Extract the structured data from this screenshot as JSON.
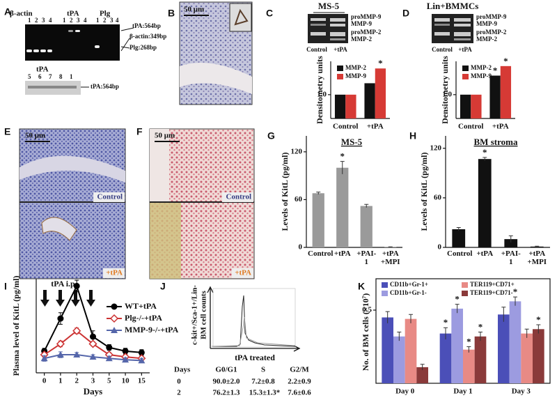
{
  "panel_labels": [
    "A",
    "B",
    "C",
    "D",
    "E",
    "F",
    "G",
    "H",
    "I",
    "J",
    "K"
  ],
  "panel_a": {
    "headers": [
      "β-actin",
      "tPA",
      "Plg"
    ],
    "lanes": [
      "1",
      "2",
      "3",
      "4"
    ],
    "band_labels": [
      "tPA:564bp",
      "β-actin:349bp",
      "Plg:268bp"
    ],
    "lower_header": "tPA",
    "lower_lanes": [
      "5",
      "6",
      "7",
      "8",
      "1"
    ],
    "lower_band_label": "tPA:564bp"
  },
  "panel_b": {
    "scale": "50 μm"
  },
  "panel_c": {
    "title": "MS-5",
    "gel_labels": [
      "proMMP-9",
      "MMP-9",
      "proMMP-2",
      "MMP-2"
    ],
    "gel_lanes": [
      "Control",
      "+tPA"
    ]
  },
  "panel_d": {
    "title": "Lin+BMMCs",
    "gel_labels": [
      "proMMP-9",
      "MMP-9",
      "proMMP-2",
      "MMP-2"
    ],
    "gel_lanes": [
      "Control",
      "+tPA"
    ]
  },
  "panel_e": {
    "scale": "50 μm",
    "labels": [
      "Control",
      "+tPA"
    ]
  },
  "panel_f": {
    "scale": "50 μm",
    "labels": [
      "Control",
      "+tPA"
    ]
  },
  "panel_i": {
    "annotation": "tPA i.p."
  },
  "panel_j": {
    "y_label": [
      "c-kit+/Sca-1+/Lin-",
      "BM cell counts"
    ],
    "x_label": "tPA treated",
    "table": {
      "header": [
        "Days",
        "G0/G1",
        "S",
        "G2/M"
      ],
      "rows": [
        [
          "0",
          "90.0±2.0",
          "7.2±0.8",
          "2.2±0.9"
        ],
        [
          "2",
          "76.2±1.3",
          "15.3±1.3*",
          "7.6±0.6"
        ]
      ]
    }
  },
  "chart_data": [
    {
      "type": "bar",
      "y_label": "Densitometry units",
      "categories": [
        "Control",
        "+tPA"
      ],
      "series": [
        {
          "name": "MMP-2",
          "color": "#111111",
          "values": [
            1.0,
            1.24
          ]
        },
        {
          "name": "MMP-9",
          "color": "#d63a35",
          "values": [
            1.0,
            1.55
          ],
          "significance": [
            null,
            "*"
          ]
        }
      ],
      "ylim": [
        0.5,
        1.7
      ],
      "yticks": [
        {
          "value": 1,
          "label": "1.0"
        }
      ]
    },
    {
      "type": "bar",
      "y_label": "Densitometry units",
      "categories": [
        "Control",
        "+tPA"
      ],
      "series": [
        {
          "name": "MMP-2",
          "color": "#111111",
          "values": [
            1.0,
            1.4
          ],
          "significance": [
            null,
            "*"
          ]
        },
        {
          "name": "MMP-9",
          "color": "#d63a35",
          "values": [
            1.0,
            1.6
          ],
          "significance": [
            null,
            "*"
          ]
        }
      ],
      "ylim": [
        0.5,
        1.7
      ],
      "yticks": [
        {
          "value": 1,
          "label": "1.0"
        }
      ]
    },
    {
      "type": "bar",
      "title": "MS-5",
      "y_label": "Levels of KitL (pg/ml)",
      "categories": [
        "Control",
        "+tPA",
        "+PAI-1",
        "+tPA +MPI"
      ],
      "series": [
        {
          "color": "#9a9a9a",
          "values": [
            68,
            100,
            52,
            0.5
          ],
          "errors": [
            1.5,
            8,
            2,
            0.3
          ],
          "significance": [
            null,
            "*",
            null,
            null
          ]
        }
      ],
      "ylim": [
        0,
        140
      ],
      "yticks": [
        0,
        60,
        120
      ]
    },
    {
      "type": "bar",
      "title": "BM stroma",
      "y_label": "Levels of KitL (pg/ml)",
      "categories": [
        "Control",
        "+tPA",
        "+PAI-1",
        "+tPA +MPI"
      ],
      "series": [
        {
          "color": "#111111",
          "values": [
            22,
            107,
            10,
            1
          ],
          "errors": [
            2,
            2,
            4,
            0.5
          ],
          "significance": [
            null,
            "*",
            null,
            null
          ]
        }
      ],
      "ylim": [
        0,
        135
      ],
      "yticks": [
        0,
        60,
        120
      ]
    },
    {
      "type": "line",
      "x_label": "Days",
      "y_label": "Plasma level of KitL (pg/ml)",
      "categories": [
        "0",
        "1",
        "2",
        "3",
        "5",
        "10",
        "15"
      ],
      "series": [
        {
          "name": "WT+tPA",
          "color": "#000000",
          "marker": "circle",
          "values": [
            30,
            75,
            120,
            50,
            35,
            30,
            28
          ],
          "errors": [
            4,
            8,
            8,
            8,
            4,
            4,
            4
          ]
        },
        {
          "name": "Plg-/-+tPA",
          "color": "#cc3333",
          "marker": "open-diamond",
          "values": [
            25,
            40,
            58,
            40,
            25,
            22,
            20
          ],
          "errors": [
            3,
            4,
            4,
            3,
            3,
            3,
            3
          ]
        },
        {
          "name": "MMP-9-/-+tPA",
          "color": "#5566aa",
          "marker": "triangle",
          "values": [
            20,
            25,
            25,
            22,
            20,
            18,
            17
          ],
          "errors": [
            4,
            4,
            3,
            3,
            3,
            3,
            3
          ]
        }
      ],
      "ylim": [
        0,
        130
      ],
      "legend": "upper right"
    },
    {
      "type": "bar",
      "y_label": "No. of BM cells (×10⁷)",
      "categories": [
        "Day 0",
        "Day 1",
        "Day 3"
      ],
      "series": [
        {
          "name": "CD11b+Gr-1+",
          "color": "#4b4fb8",
          "values": [
            0.45,
            0.34,
            0.47
          ],
          "errors": [
            0.04,
            0.04,
            0.05
          ],
          "significance": [
            null,
            "*",
            null
          ]
        },
        {
          "name": "CD11b+Gr-1-",
          "color": "#9c9be0",
          "values": [
            0.32,
            0.51,
            0.56
          ],
          "errors": [
            0.03,
            0.03,
            0.03
          ],
          "significance": [
            null,
            "*",
            "*"
          ]
        },
        {
          "name": "TER119+CD71+",
          "color": "#e88a85",
          "values": [
            0.44,
            0.23,
            0.34
          ],
          "errors": [
            0.03,
            0.02,
            0.03
          ],
          "significance": [
            null,
            "*",
            null
          ]
        },
        {
          "name": "TER119+CD71-",
          "color": "#8a3a3a",
          "values": [
            0.11,
            0.32,
            0.37
          ],
          "errors": [
            0.02,
            0.03,
            0.03
          ],
          "significance": [
            null,
            "*",
            "*"
          ]
        }
      ],
      "ylim": [
        0,
        0.7
      ],
      "yticks": [
        0.5
      ]
    }
  ]
}
